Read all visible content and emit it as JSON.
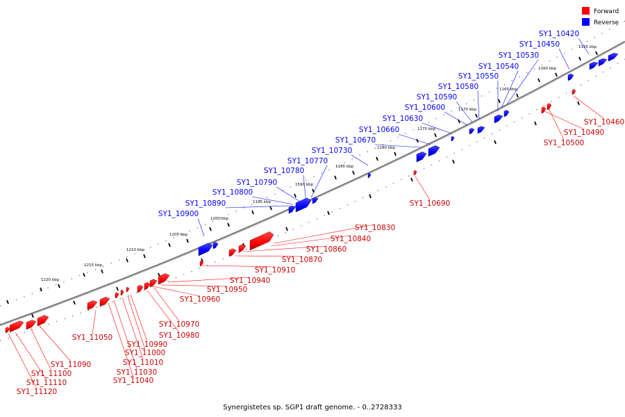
{
  "legend": {
    "forward_label": "Forward",
    "reverse_label": "Reverse",
    "forward_color": "#ff0000",
    "reverse_color": "#0000ff"
  },
  "caption": "Synergistetes sp. SGP1 draft genome. - 0..2728333",
  "ticks": [
    "1155 kbp",
    "1160 kbp",
    "1165 kbp",
    "1170 kbp",
    "1175 kbp",
    "1180 kbp",
    "1185 kbp",
    "1190 kbp",
    "1195 kbp",
    "1200 kbp",
    "1205 kbp",
    "1210 kbp",
    "1215 kbp",
    "1220 kbp"
  ],
  "reverse_genes": [
    "SY1_10420",
    "SY1_10450",
    "SY1_10530",
    "SY1_10540",
    "SY1_10550",
    "SY1_10580",
    "SY1_10590",
    "SY1_10600",
    "SY1_10630",
    "SY1_10660",
    "SY1_10670",
    "SY1_10730",
    "SY1_10770",
    "SY1_10780",
    "SY1_10790",
    "SY1_10800",
    "SY1_10890",
    "SY1_10900"
  ],
  "forward_genes": [
    "SY1_10460",
    "SY1_10490",
    "SY1_10500",
    "SY1_10690",
    "SY1_10830",
    "SY1_10840",
    "SY1_10860",
    "SY1_10870",
    "SY1_10910",
    "SY1_10940",
    "SY1_10950",
    "SY1_10960",
    "SY1_10970",
    "SY1_10980",
    "SY1_10990",
    "SY1_11000",
    "SY1_11010",
    "SY1_11030",
    "SY1_11040",
    "SY1_11050",
    "SY1_11090",
    "SY1_11100",
    "SY1_11110",
    "SY1_11120"
  ]
}
